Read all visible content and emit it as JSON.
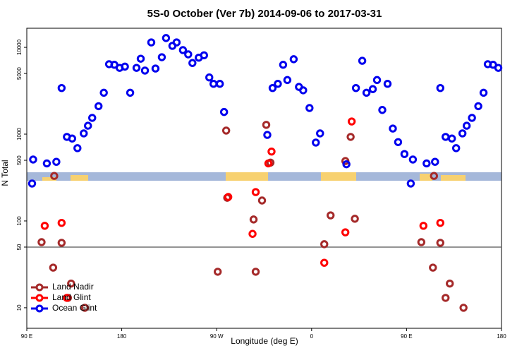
{
  "chart_data": {
    "type": "scatter",
    "title": "5S-0 October (Ver 7b)   2014-09-06 to 2017-03-31",
    "x_label": "Longitude (deg E)",
    "y_label": "N Total",
    "xlim": [
      90,
      540
    ],
    "ylim": [
      5.8,
      16600
    ],
    "log_y": true,
    "xticks": [
      {
        "value": 90,
        "label": "90 E"
      },
      180,
      {
        "value": 270,
        "label": "90 W"
      },
      {
        "value": 360,
        "label": "0"
      },
      {
        "value": 450,
        "label": "90 E"
      },
      {
        "value": 540,
        "label": "180"
      }
    ],
    "yticks": [
      10,
      50,
      100,
      500,
      1000,
      5000,
      10000
    ],
    "hline": 50,
    "legend": "bottom-left",
    "series": [
      {
        "name": "Land Nadir",
        "color": "#a52a2a",
        "x": [
          104,
          115,
          116,
          123,
          129,
          132,
          145,
          271,
          279,
          280,
          305,
          307,
          313,
          317,
          321,
          372,
          378,
          392,
          397,
          401,
          464,
          475,
          476,
          482,
          487,
          491,
          504
        ],
        "values": [
          57,
          29,
          330,
          56,
          13,
          19,
          10,
          26,
          1100,
          185,
          104,
          26,
          172,
          1280,
          470,
          54,
          116,
          490,
          930,
          106,
          57,
          29,
          330,
          56,
          13,
          19,
          10
        ]
      },
      {
        "name": "Land Glint",
        "color": "#ff0000",
        "x": [
          107,
          123,
          128,
          281,
          304,
          307,
          319,
          322,
          372,
          392,
          398,
          466,
          482
        ],
        "values": [
          88,
          95,
          13,
          189,
          71,
          215,
          460,
          630,
          33,
          74,
          1400,
          88,
          95
        ]
      },
      {
        "name": "Ocean Glint",
        "color": "#0000ee",
        "x": [
          96,
          95,
          109,
          118,
          123,
          128,
          133,
          138,
          144,
          148,
          152,
          158,
          163,
          168,
          173,
          178,
          183,
          188,
          194,
          198,
          202,
          208,
          212,
          218,
          222,
          228,
          232,
          238,
          243,
          247,
          253,
          258,
          263,
          267,
          273,
          277,
          318,
          323,
          328,
          333,
          337,
          343,
          348,
          352,
          358,
          364,
          368,
          393,
          402,
          408,
          412,
          418,
          422,
          427,
          432,
          437,
          442,
          448,
          454,
          456,
          469,
          477,
          482,
          487,
          493,
          497,
          503,
          507,
          512,
          518,
          523,
          527,
          532,
          537
        ],
        "values": [
          510,
          270,
          460,
          480,
          3400,
          930,
          890,
          690,
          1020,
          1250,
          1540,
          2100,
          3000,
          6400,
          6300,
          5800,
          6000,
          3000,
          5800,
          7400,
          5400,
          11400,
          5700,
          7700,
          12800,
          10400,
          11400,
          9300,
          8300,
          6600,
          7600,
          8100,
          4500,
          3800,
          3800,
          1800,
          980,
          3400,
          3800,
          6300,
          4200,
          7300,
          3500,
          3200,
          2000,
          800,
          1020,
          450,
          3400,
          7000,
          3000,
          3300,
          4200,
          1900,
          3800,
          1160,
          810,
          590,
          270,
          510,
          460,
          480,
          3400,
          930,
          890,
          690,
          1020,
          1250,
          1540,
          2100,
          3000,
          6400,
          6300,
          5800
        ]
      }
    ]
  }
}
